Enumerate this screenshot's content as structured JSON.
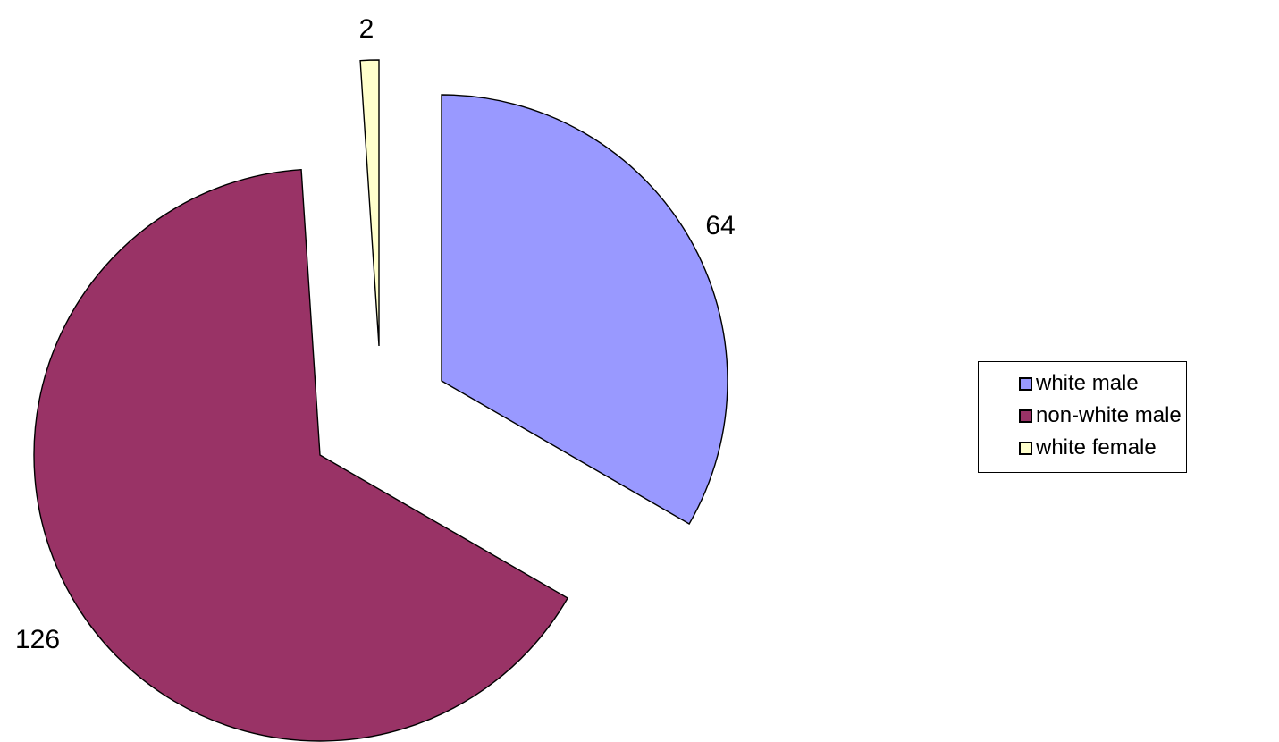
{
  "chart_data": {
    "type": "pie",
    "exploded": true,
    "start": "top, clockwise",
    "categories": [
      "white male",
      "non-white male",
      "white female"
    ],
    "values": [
      64,
      126,
      2
    ],
    "colors": [
      "#9999ff",
      "#993366",
      "#ffffcc"
    ],
    "data_labels": [
      "64",
      "126",
      "2"
    ],
    "legend_position": "right",
    "title": ""
  }
}
